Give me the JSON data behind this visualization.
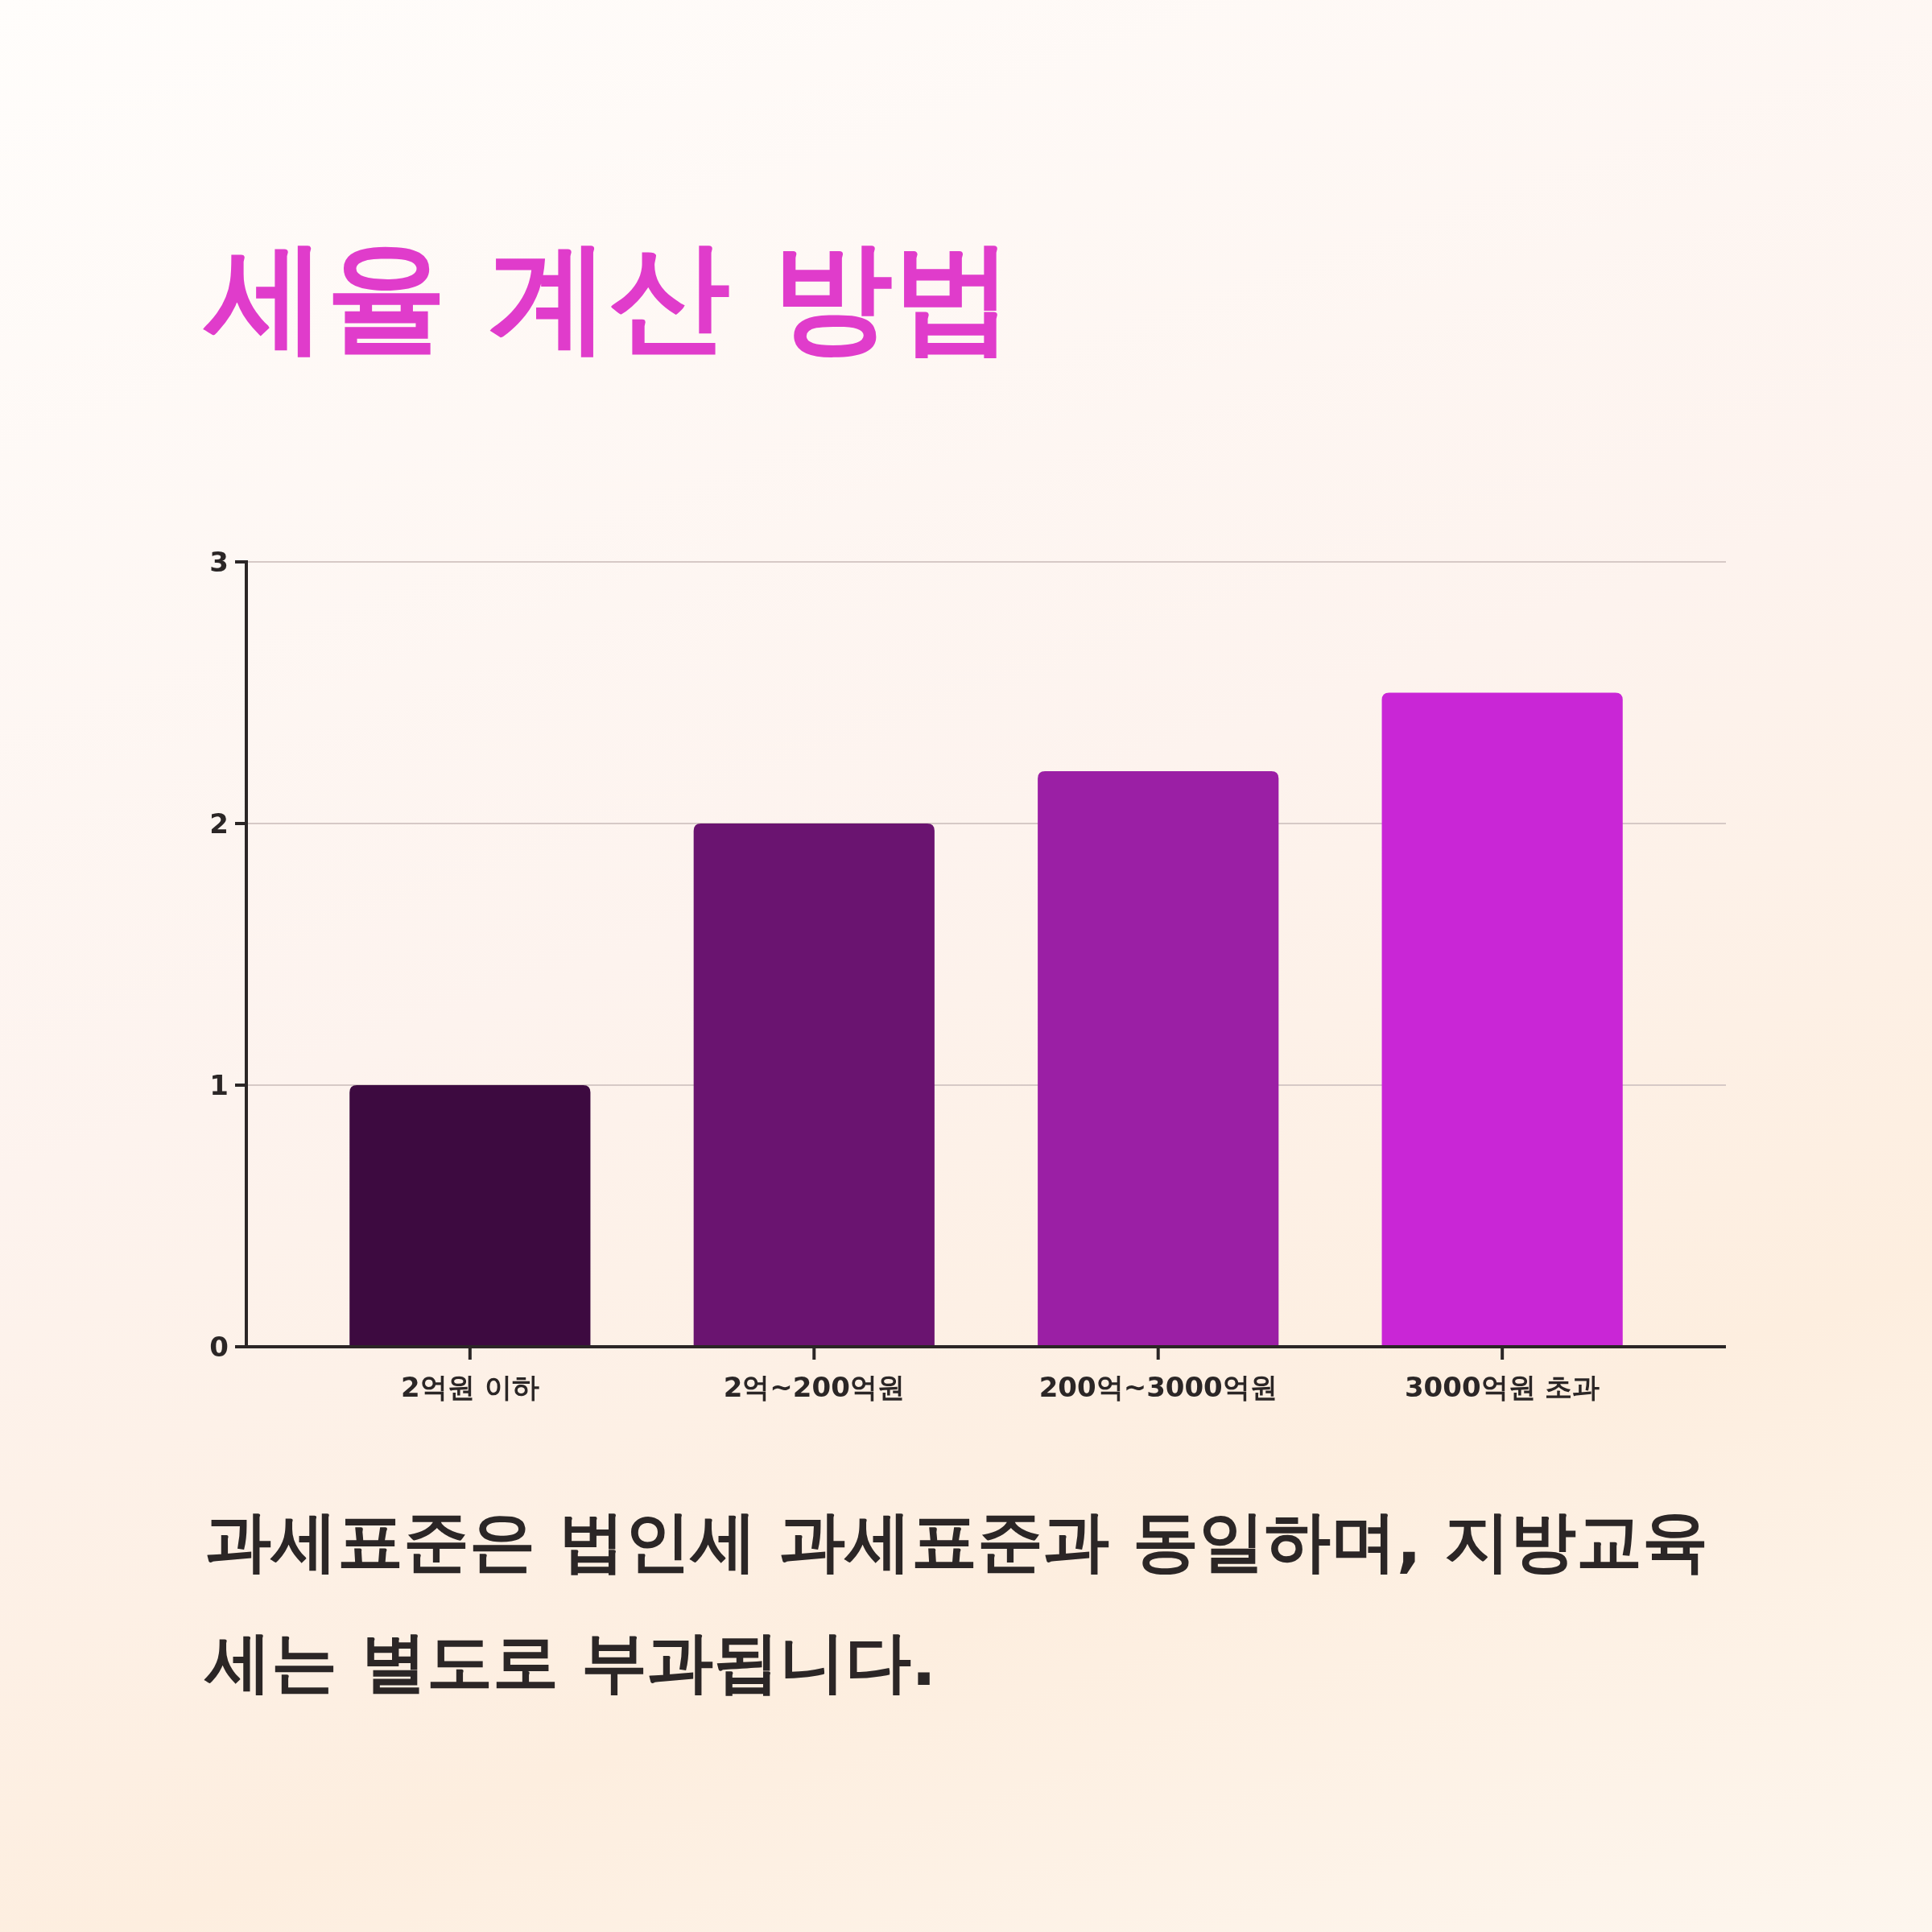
{
  "chart_data": {
    "type": "bar",
    "title": "세율 계산 방법",
    "categories": [
      "2억원 이하",
      "2억~200억원",
      "200억~3000억원",
      "3000억원 초과"
    ],
    "values": [
      1,
      2,
      2.2,
      2.5
    ],
    "colors": [
      "#3d0a40",
      "#6a1470",
      "#9b1fa5",
      "#c926d6"
    ],
    "ylim": [
      0,
      3
    ],
    "yticks": [
      0,
      1,
      2,
      3
    ],
    "grid": "y",
    "annotations": [
      "과세표준은 법인세 과세표준과 동일하며, 지방교육세는 별도로 부과됩니다."
    ]
  }
}
